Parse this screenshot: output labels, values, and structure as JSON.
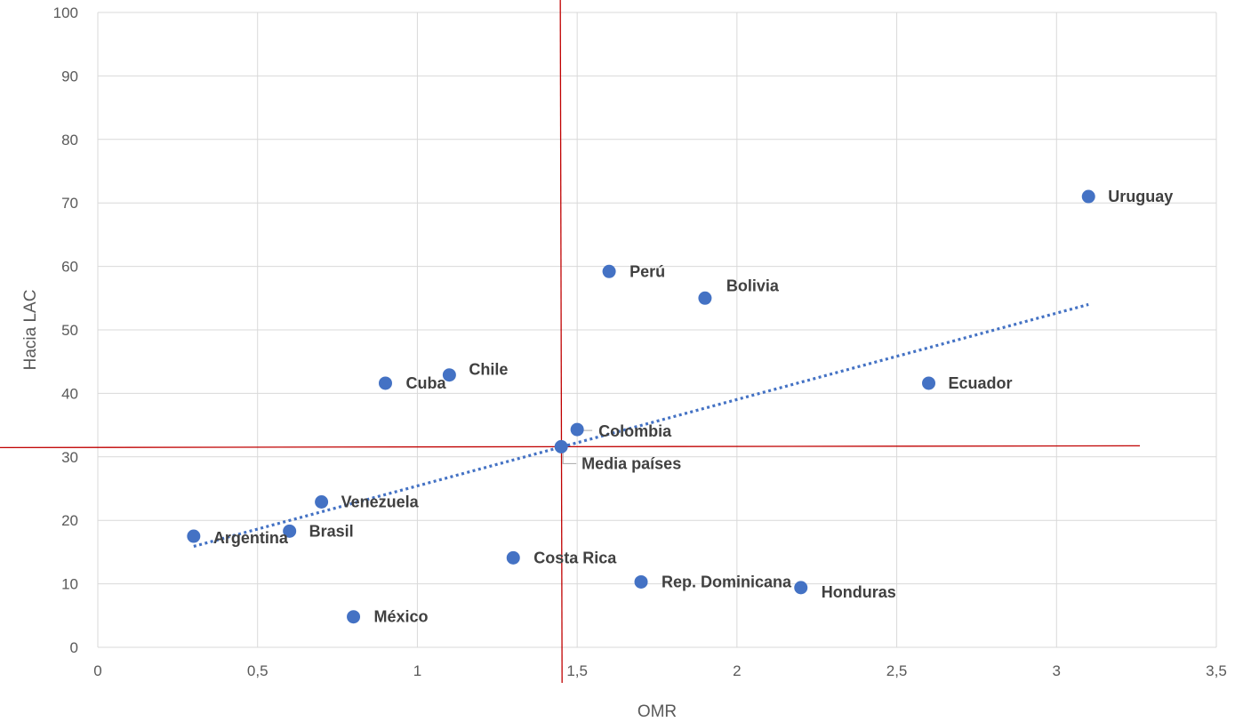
{
  "chart_data": {
    "type": "scatter",
    "title": "",
    "xlabel": "OMR",
    "ylabel": "Hacia LAC",
    "xlim": [
      0,
      3.5
    ],
    "ylim": [
      0,
      100
    ],
    "xticks": [
      0,
      0.5,
      1,
      1.5,
      2,
      2.5,
      3,
      3.5
    ],
    "xtick_labels": [
      "0",
      "0,5",
      "1",
      "1,5",
      "2",
      "2,5",
      "3",
      "3,5"
    ],
    "yticks": [
      0,
      10,
      20,
      30,
      40,
      50,
      60,
      70,
      80,
      90,
      100
    ],
    "ytick_labels": [
      "0",
      "10",
      "20",
      "30",
      "40",
      "50",
      "60",
      "70",
      "80",
      "90",
      "100"
    ],
    "grid": true,
    "point_color": "#4472C4",
    "trendline_color": "#4472C4",
    "reference_line_color": "#C00000",
    "points": [
      {
        "label": "Uruguay",
        "x": 3.1,
        "y": 71
      },
      {
        "label": "Perú",
        "x": 1.6,
        "y": 59.2
      },
      {
        "label": "Bolivia",
        "x": 1.9,
        "y": 55
      },
      {
        "label": "Chile",
        "x": 1.1,
        "y": 42.9
      },
      {
        "label": "Cuba",
        "x": 0.9,
        "y": 41.6
      },
      {
        "label": "Ecuador",
        "x": 2.6,
        "y": 41.6
      },
      {
        "label": "Colombia",
        "x": 1.5,
        "y": 34.3
      },
      {
        "label": "Media países",
        "x": 1.45,
        "y": 31.6
      },
      {
        "label": "Venezuela",
        "x": 0.7,
        "y": 22.9
      },
      {
        "label": "Brasil",
        "x": 0.6,
        "y": 18.3
      },
      {
        "label": "Argentina",
        "x": 0.3,
        "y": 17.5
      },
      {
        "label": "Costa Rica",
        "x": 1.3,
        "y": 14.1
      },
      {
        "label": "Rep. Dominicana",
        "x": 1.7,
        "y": 10.3
      },
      {
        "label": "Honduras",
        "x": 2.2,
        "y": 9.4
      },
      {
        "label": "México",
        "x": 0.8,
        "y": 4.8
      }
    ],
    "trendline": {
      "type": "linear",
      "x": [
        0.3,
        3.1
      ],
      "y": [
        15.9,
        54
      ]
    },
    "reference_lines": {
      "vertical_x": 1.45,
      "horizontal_y": 31.6
    }
  }
}
